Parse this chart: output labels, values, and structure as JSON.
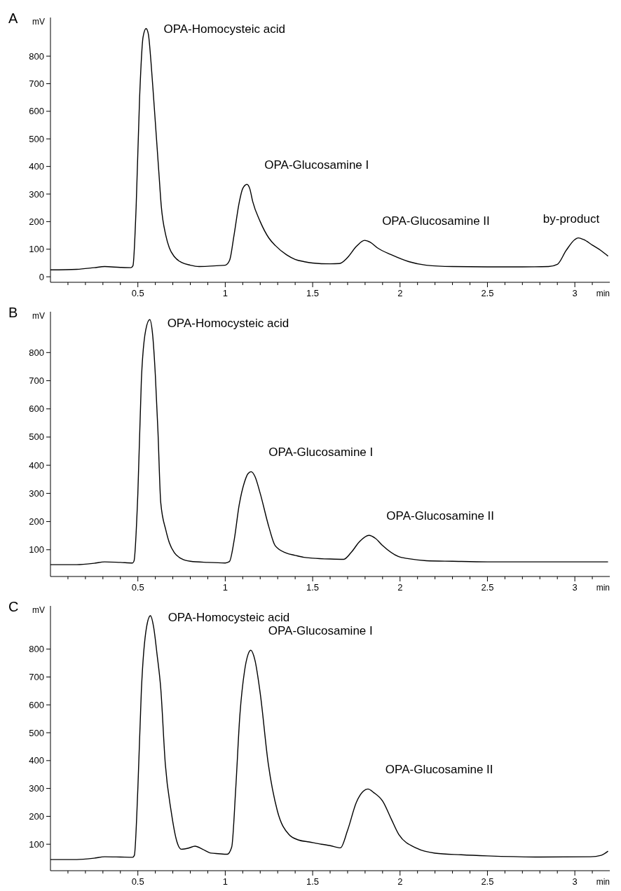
{
  "chart_data": [
    {
      "type": "line",
      "title": "A",
      "xlabel": "min",
      "ylabel": "mV",
      "color": "#000000",
      "x": [
        0.0,
        0.15,
        0.25,
        0.31,
        0.4,
        0.46,
        0.472,
        0.49,
        0.51,
        0.53,
        0.547,
        0.56,
        0.575,
        0.59,
        0.6,
        0.62,
        0.634,
        0.66,
        0.68,
        0.71,
        0.75,
        0.8,
        0.85,
        0.9,
        0.95,
        1.0,
        1.025,
        1.05,
        1.08,
        1.1,
        1.124,
        1.14,
        1.157,
        1.2,
        1.25,
        1.287,
        1.35,
        1.4,
        1.45,
        1.5,
        1.6,
        1.653,
        1.7,
        1.75,
        1.797,
        1.83,
        1.87,
        1.95,
        2.05,
        2.15,
        2.3,
        2.5,
        2.7,
        2.85,
        2.9,
        2.95,
        3.0,
        3.02,
        3.05,
        3.1,
        3.15,
        3.19
      ],
      "values": [
        25,
        27,
        33,
        37,
        34,
        33,
        40,
        250,
        650,
        870,
        900,
        880,
        780,
        650,
        560,
        380,
        256,
        150,
        105,
        72,
        52,
        42,
        37,
        38,
        40,
        42,
        60,
        150,
        270,
        320,
        335,
        320,
        273,
        200,
        140,
        113,
        80,
        63,
        55,
        50,
        47,
        48,
        70,
        110,
        132,
        125,
        105,
        80,
        55,
        42,
        37,
        36,
        36,
        37,
        45,
        95,
        135,
        141,
        135,
        115,
        95,
        75
      ],
      "xlim": [
        0,
        3.2
      ],
      "ylim": [
        -20,
        940
      ],
      "xticks": [
        {
          "value": 0.1,
          "label": null
        },
        {
          "value": 0.2,
          "label": null
        },
        {
          "value": 0.3,
          "label": null
        },
        {
          "value": 0.4,
          "label": null
        },
        0.5,
        {
          "value": 0.6,
          "label": null
        },
        {
          "value": 0.7,
          "label": null
        },
        {
          "value": 0.8,
          "label": null
        },
        {
          "value": 0.9,
          "label": null
        },
        1,
        {
          "value": 1.1,
          "label": null
        },
        {
          "value": 1.2,
          "label": null
        },
        {
          "value": 1.3,
          "label": null
        },
        {
          "value": 1.4,
          "label": null
        },
        1.5,
        {
          "value": 1.6,
          "label": null
        },
        {
          "value": 1.7,
          "label": null
        },
        {
          "value": 1.8,
          "label": null
        },
        {
          "value": 1.9,
          "label": null
        },
        2,
        {
          "value": 2.1,
          "label": null
        },
        {
          "value": 2.2,
          "label": null
        },
        {
          "value": 2.3,
          "label": null
        },
        {
          "value": 2.4,
          "label": null
        },
        2.5,
        {
          "value": 2.6,
          "label": null
        },
        {
          "value": 2.7,
          "label": null
        },
        {
          "value": 2.8,
          "label": null
        },
        {
          "value": 2.9,
          "label": null
        },
        3,
        {
          "value": 3.1,
          "label": null
        }
      ],
      "yticks": [
        0,
        100,
        200,
        300,
        400,
        500,
        600,
        700,
        800
      ],
      "annotations": [
        {
          "text": "OPA-Homocysteic acid",
          "x": 0.547,
          "y": 900
        },
        {
          "text": "OPA-Glucosamine I",
          "x": 1.124,
          "y": 335
        },
        {
          "text": "OPA-Glucosamine II",
          "x": 1.797,
          "y": 132
        },
        {
          "text": "by-product",
          "x": 3.02,
          "y": 141
        }
      ]
    },
    {
      "type": "line",
      "title": "B",
      "xlabel": "min",
      "ylabel": "mV",
      "color": "#000000",
      "x": [
        0.0,
        0.15,
        0.25,
        0.31,
        0.4,
        0.47,
        0.478,
        0.5,
        0.52,
        0.545,
        0.568,
        0.585,
        0.6,
        0.615,
        0.631,
        0.66,
        0.68,
        0.709,
        0.75,
        0.8,
        0.9,
        1.0,
        1.024,
        1.05,
        1.08,
        1.11,
        1.13,
        1.148,
        1.17,
        1.2,
        1.25,
        1.286,
        1.35,
        1.4,
        1.45,
        1.5,
        1.6,
        1.678,
        1.72,
        1.77,
        1.822,
        1.86,
        1.9,
        1.99,
        2.05,
        2.15,
        2.3,
        2.5,
        2.8,
        3.0,
        3.19
      ],
      "values": [
        47,
        47,
        52,
        57,
        55,
        53,
        60,
        300,
        700,
        880,
        917,
        860,
        720,
        520,
        267,
        170,
        125,
        89,
        68,
        59,
        55,
        53,
        58,
        130,
        260,
        340,
        370,
        377,
        360,
        300,
        180,
        114,
        88,
        80,
        73,
        70,
        67,
        66,
        90,
        130,
        151,
        140,
        115,
        76,
        68,
        61,
        59,
        57,
        57,
        57,
        57
      ],
      "xlim": [
        0,
        3.2
      ],
      "ylim": [
        5,
        945
      ],
      "xticks": [
        {
          "value": 0.1,
          "label": null
        },
        {
          "value": 0.2,
          "label": null
        },
        {
          "value": 0.3,
          "label": null
        },
        {
          "value": 0.4,
          "label": null
        },
        0.5,
        {
          "value": 0.6,
          "label": null
        },
        {
          "value": 0.7,
          "label": null
        },
        {
          "value": 0.8,
          "label": null
        },
        {
          "value": 0.9,
          "label": null
        },
        1,
        {
          "value": 1.1,
          "label": null
        },
        {
          "value": 1.2,
          "label": null
        },
        {
          "value": 1.3,
          "label": null
        },
        {
          "value": 1.4,
          "label": null
        },
        1.5,
        {
          "value": 1.6,
          "label": null
        },
        {
          "value": 1.7,
          "label": null
        },
        {
          "value": 1.8,
          "label": null
        },
        {
          "value": 1.9,
          "label": null
        },
        2,
        {
          "value": 2.1,
          "label": null
        },
        {
          "value": 2.2,
          "label": null
        },
        {
          "value": 2.3,
          "label": null
        },
        {
          "value": 2.4,
          "label": null
        },
        2.5,
        {
          "value": 2.6,
          "label": null
        },
        {
          "value": 2.7,
          "label": null
        },
        {
          "value": 2.8,
          "label": null
        },
        {
          "value": 2.9,
          "label": null
        },
        3,
        {
          "value": 3.1,
          "label": null
        }
      ],
      "yticks": [
        100,
        200,
        300,
        400,
        500,
        600,
        700,
        800
      ],
      "annotations": [
        {
          "text": "OPA-Homocysteic acid",
          "x": 0.568,
          "y": 917
        },
        {
          "text": "OPA-Glucosamine I",
          "x": 1.148,
          "y": 377
        },
        {
          "text": "OPA-Glucosamine II",
          "x": 1.822,
          "y": 151
        }
      ]
    },
    {
      "type": "line",
      "title": "C",
      "xlabel": "min",
      "ylabel": "mV",
      "color": "#000000",
      "x": [
        0.0,
        0.15,
        0.25,
        0.31,
        0.4,
        0.47,
        0.48,
        0.5,
        0.52,
        0.55,
        0.572,
        0.59,
        0.61,
        0.631,
        0.657,
        0.69,
        0.723,
        0.749,
        0.79,
        0.827,
        0.87,
        0.919,
        0.96,
        1.011,
        1.037,
        1.06,
        1.083,
        1.11,
        1.13,
        1.146,
        1.17,
        1.2,
        1.246,
        1.298,
        1.364,
        1.42,
        1.481,
        1.55,
        1.6,
        1.659,
        1.7,
        1.75,
        1.79,
        1.816,
        1.85,
        1.901,
        1.95,
        1.993,
        2.097,
        2.2,
        2.35,
        2.5,
        2.8,
        3.09,
        3.15,
        3.19
      ],
      "values": [
        45,
        45,
        50,
        55,
        54,
        53,
        60,
        300,
        650,
        880,
        920,
        880,
        780,
        659,
        388,
        220,
        110,
        82,
        86,
        93,
        82,
        68,
        66,
        64,
        90,
        300,
        557,
        720,
        780,
        796,
        760,
        642,
        389,
        220,
        135,
        115,
        108,
        100,
        95,
        87,
        150,
        250,
        290,
        298,
        285,
        254,
        190,
        135,
        85,
        68,
        62,
        58,
        54,
        55,
        60,
        75
      ],
      "xlim": [
        0,
        3.2
      ],
      "ylim": [
        5,
        955
      ],
      "xticks": [
        {
          "value": 0.1,
          "label": null
        },
        {
          "value": 0.2,
          "label": null
        },
        {
          "value": 0.3,
          "label": null
        },
        {
          "value": 0.4,
          "label": null
        },
        0.5,
        {
          "value": 0.6,
          "label": null
        },
        {
          "value": 0.7,
          "label": null
        },
        {
          "value": 0.8,
          "label": null
        },
        {
          "value": 0.9,
          "label": null
        },
        1,
        {
          "value": 1.1,
          "label": null
        },
        {
          "value": 1.2,
          "label": null
        },
        {
          "value": 1.3,
          "label": null
        },
        {
          "value": 1.4,
          "label": null
        },
        1.5,
        {
          "value": 1.6,
          "label": null
        },
        {
          "value": 1.7,
          "label": null
        },
        {
          "value": 1.8,
          "label": null
        },
        {
          "value": 1.9,
          "label": null
        },
        2,
        {
          "value": 2.1,
          "label": null
        },
        {
          "value": 2.2,
          "label": null
        },
        {
          "value": 2.3,
          "label": null
        },
        {
          "value": 2.4,
          "label": null
        },
        2.5,
        {
          "value": 2.6,
          "label": null
        },
        {
          "value": 2.7,
          "label": null
        },
        {
          "value": 2.8,
          "label": null
        },
        {
          "value": 2.9,
          "label": null
        },
        3,
        {
          "value": 3.1,
          "label": null
        }
      ],
      "yticks": [
        100,
        200,
        300,
        400,
        500,
        600,
        700,
        800
      ],
      "annotations": [
        {
          "text": "OPA-Homocysteic acid",
          "x": 0.572,
          "y": 920
        },
        {
          "text": "OPA-Glucosamine I",
          "x": 1.146,
          "y": 796
        },
        {
          "text": "OPA-Glucosamine II",
          "x": 1.816,
          "y": 298
        }
      ]
    }
  ]
}
